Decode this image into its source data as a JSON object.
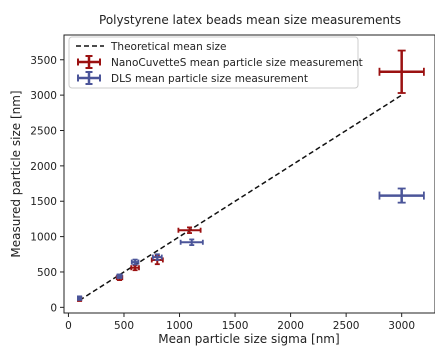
{
  "chart_data": {
    "type": "scatter",
    "title": "Polystyrene latex beads mean size measurements",
    "xlabel": "Mean particle size sigma [nm]",
    "ylabel": "Measured particle size [nm]",
    "xlim": [
      -40,
      3300
    ],
    "ylim": [
      -80,
      3850
    ],
    "xticks": [
      0,
      500,
      1000,
      1500,
      2000,
      2500,
      3000
    ],
    "yticks": [
      0,
      500,
      1000,
      1500,
      2000,
      2500,
      3000,
      3500
    ],
    "grid": false,
    "legend_position": "top-left",
    "theoretical": {
      "name": "Theoretical mean size",
      "x": [
        100,
        3000
      ],
      "y": [
        100,
        3000
      ],
      "color": "#111111"
    },
    "series": [
      {
        "name": "NanoCuvetteS mean particle size measurement",
        "color": "#9b1111",
        "points": [
          {
            "x": 100,
            "y": 120,
            "xerr": 15,
            "yerr": 30
          },
          {
            "x": 460,
            "y": 420,
            "xerr": 25,
            "yerr": 35
          },
          {
            "x": 600,
            "y": 560,
            "xerr": 35,
            "yerr": 35
          },
          {
            "x": 800,
            "y": 670,
            "xerr": 50,
            "yerr": 60
          },
          {
            "x": 1090,
            "y": 1090,
            "xerr": 100,
            "yerr": 40
          },
          {
            "x": 3000,
            "y": 3330,
            "xerr": 200,
            "yerr": 300
          }
        ]
      },
      {
        "name": "DLS mean particle size measurement",
        "color": "#4b5599",
        "points": [
          {
            "x": 100,
            "y": 130,
            "xerr": 15,
            "yerr": 25
          },
          {
            "x": 460,
            "y": 440,
            "xerr": 20,
            "yerr": 25
          },
          {
            "x": 600,
            "y": 640,
            "xerr": 30,
            "yerr": 35
          },
          {
            "x": 800,
            "y": 710,
            "xerr": 40,
            "yerr": 40
          },
          {
            "x": 1110,
            "y": 920,
            "xerr": 100,
            "yerr": 40
          },
          {
            "x": 3000,
            "y": 1580,
            "xerr": 200,
            "yerr": 100
          }
        ]
      }
    ]
  }
}
